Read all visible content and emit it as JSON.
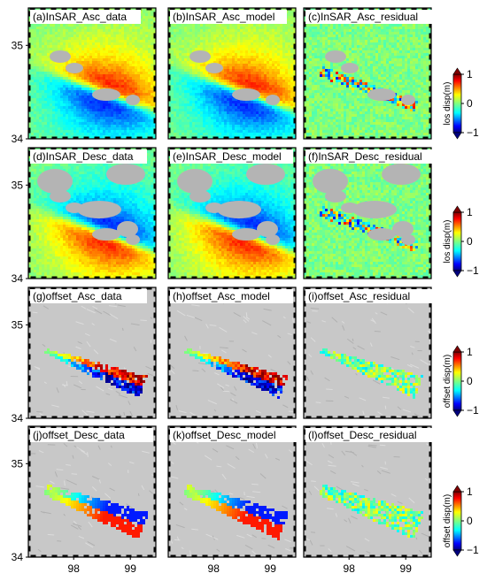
{
  "chart_data": {
    "type": "heatmap",
    "xticks": [
      98,
      99
    ],
    "yticks": [
      35,
      34
    ],
    "panels": [
      {
        "title": "(a)InSAR_Asc_data",
        "kind": "insar",
        "pattern": "asc",
        "amp": 1.0,
        "row": 0,
        "col": 0
      },
      {
        "title": "(b)InSAR_Asc_model",
        "kind": "insar",
        "pattern": "asc",
        "amp": 1.0,
        "row": 0,
        "col": 1
      },
      {
        "title": "(c)InSAR_Asc_residual",
        "kind": "insar",
        "pattern": "asc",
        "amp": 0.15,
        "row": 0,
        "col": 2
      },
      {
        "title": "(d)InSAR_Desc_data",
        "kind": "insar",
        "pattern": "desc",
        "amp": 1.0,
        "row": 1,
        "col": 0
      },
      {
        "title": "(e)InSAR_Desc_model",
        "kind": "insar",
        "pattern": "desc",
        "amp": 1.0,
        "row": 1,
        "col": 1
      },
      {
        "title": "(f)InSAR_Desc_residual",
        "kind": "insar",
        "pattern": "desc",
        "amp": 0.15,
        "row": 1,
        "col": 2
      },
      {
        "title": "(g)offset_Asc_data",
        "kind": "offset",
        "pattern": "asc",
        "amp": 1.0,
        "row": 2,
        "col": 0
      },
      {
        "title": "(h)offset_Asc_model",
        "kind": "offset",
        "pattern": "asc",
        "amp": 1.0,
        "row": 2,
        "col": 1
      },
      {
        "title": "(i)offset_Asc_residual",
        "kind": "offset",
        "pattern": "asc",
        "amp": 0.2,
        "row": 2,
        "col": 2
      },
      {
        "title": "(j)offset_Desc_data",
        "kind": "offset",
        "pattern": "desc",
        "amp": 1.0,
        "row": 3,
        "col": 0
      },
      {
        "title": "(k)offset_Desc_model",
        "kind": "offset",
        "pattern": "desc",
        "amp": 1.0,
        "row": 3,
        "col": 1
      },
      {
        "title": "(l)offset_Desc_residual",
        "kind": "offset",
        "pattern": "desc",
        "amp": 0.2,
        "row": 3,
        "col": 2
      }
    ],
    "colorbars": [
      {
        "label": "los disp(m)",
        "ticks": [
          "1",
          "0",
          "−1"
        ],
        "range": [
          -1,
          1
        ]
      },
      {
        "label": "los disp(m)",
        "ticks": [
          "1",
          "0",
          "−1"
        ],
        "range": [
          -1,
          1
        ]
      },
      {
        "label": "offset disp(m)",
        "ticks": [
          "1",
          "0",
          "−1"
        ],
        "range": [
          -1,
          1
        ]
      },
      {
        "label": "offset disp(m)",
        "ticks": [
          "1",
          "0",
          "−1"
        ],
        "range": [
          -1,
          1
        ]
      }
    ],
    "colormap": "jet",
    "colors": {
      "nodata": "#b4b4b4",
      "hillshade": "#c8c8c8"
    }
  }
}
